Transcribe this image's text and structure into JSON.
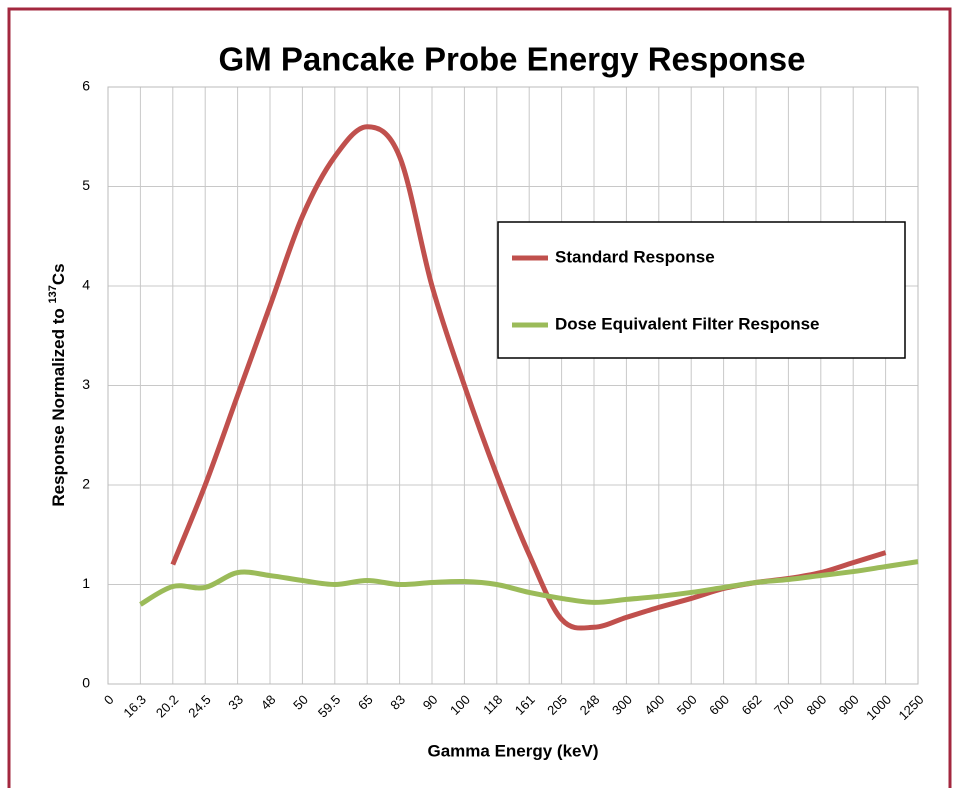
{
  "chart_data": {
    "type": "line",
    "title": "GM Pancake Probe Energy Response",
    "x_label": "Gamma Energy (keV)",
    "y_label": [
      "Response Normalized to ",
      "137",
      "Cs"
    ],
    "categories": [
      "0",
      "16.3",
      "20.2",
      "24.5",
      "33",
      "48",
      "50",
      "59.5",
      "65",
      "83",
      "90",
      "100",
      "118",
      "161",
      "205",
      "248",
      "300",
      "400",
      "500",
      "600",
      "662",
      "700",
      "800",
      "900",
      "1000",
      "1250"
    ],
    "series": [
      {
        "name": "Standard Response",
        "color": "#c0504d",
        "values": [
          null,
          null,
          1.2,
          2.0,
          2.9,
          3.8,
          4.7,
          5.3,
          5.6,
          5.3,
          4.0,
          3.0,
          2.1,
          1.3,
          0.65,
          0.57,
          0.67,
          0.77,
          0.86,
          0.96,
          1.02,
          1.06,
          1.12,
          1.22,
          1.32,
          null
        ]
      },
      {
        "name": "Dose Equivalent Filter Response",
        "color": "#9bbb59",
        "values": [
          null,
          0.8,
          0.98,
          0.97,
          1.12,
          1.09,
          1.04,
          1.0,
          1.04,
          1.0,
          1.02,
          1.03,
          1.0,
          0.92,
          0.86,
          0.82,
          0.85,
          0.88,
          0.92,
          0.97,
          1.02,
          1.05,
          1.09,
          1.13,
          1.18,
          1.23
        ]
      }
    ],
    "ylim": [
      0,
      6
    ],
    "yticks": [
      0,
      1,
      2,
      3,
      4,
      5,
      6
    ],
    "grid": true,
    "legend": "upper right"
  }
}
